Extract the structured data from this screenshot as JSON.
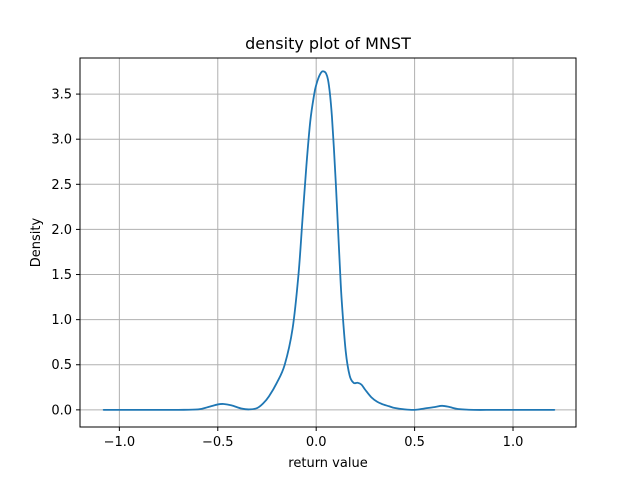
{
  "chart_data": {
    "type": "line",
    "title": "density plot of MNST",
    "xlabel": "return value",
    "ylabel": "Density",
    "xlim": [
      -1.2,
      1.32
    ],
    "ylim": [
      -0.19,
      3.9
    ],
    "xticks": [
      -1.0,
      -0.5,
      0.0,
      0.5,
      1.0
    ],
    "xtick_labels": [
      "−1.0",
      "−0.5",
      "0.0",
      "0.5",
      "1.0"
    ],
    "yticks": [
      0.0,
      0.5,
      1.0,
      1.5,
      2.0,
      2.5,
      3.0,
      3.5
    ],
    "ytick_labels": [
      "0.0",
      "0.5",
      "1.0",
      "1.5",
      "2.0",
      "2.5",
      "3.0",
      "3.5"
    ],
    "grid": true,
    "legend": "none",
    "colors": {
      "line": "#1f77b4",
      "grid": "#b0b0b0",
      "axes": "#000000"
    },
    "series": [
      {
        "x": [
          -1.08,
          -0.9,
          -0.7,
          -0.6,
          -0.55,
          -0.5,
          -0.47,
          -0.43,
          -0.38,
          -0.34,
          -0.3,
          -0.27,
          -0.24,
          -0.2,
          -0.16,
          -0.12,
          -0.09,
          -0.07,
          -0.05,
          -0.03,
          -0.01,
          0.0,
          0.01,
          0.02,
          0.03,
          0.04,
          0.05,
          0.06,
          0.07,
          0.08,
          0.09,
          0.1,
          0.11,
          0.12,
          0.13,
          0.15,
          0.17,
          0.19,
          0.21,
          0.23,
          0.25,
          0.28,
          0.31,
          0.34,
          0.37,
          0.4,
          0.45,
          0.5,
          0.55,
          0.6,
          0.64,
          0.68,
          0.72,
          0.8,
          0.9,
          1.0,
          1.1,
          1.21
        ],
        "y": [
          0.0,
          0.0,
          0.0,
          0.005,
          0.03,
          0.06,
          0.065,
          0.05,
          0.015,
          0.005,
          0.02,
          0.07,
          0.15,
          0.3,
          0.5,
          0.9,
          1.5,
          2.1,
          2.7,
          3.2,
          3.5,
          3.6,
          3.67,
          3.72,
          3.75,
          3.75,
          3.73,
          3.66,
          3.5,
          3.25,
          2.9,
          2.5,
          2.05,
          1.6,
          1.2,
          0.65,
          0.38,
          0.3,
          0.3,
          0.28,
          0.22,
          0.14,
          0.09,
          0.06,
          0.04,
          0.02,
          0.005,
          0.0,
          0.015,
          0.03,
          0.045,
          0.03,
          0.01,
          0.0,
          0.0,
          0.0,
          0.0,
          0.0
        ]
      }
    ]
  }
}
